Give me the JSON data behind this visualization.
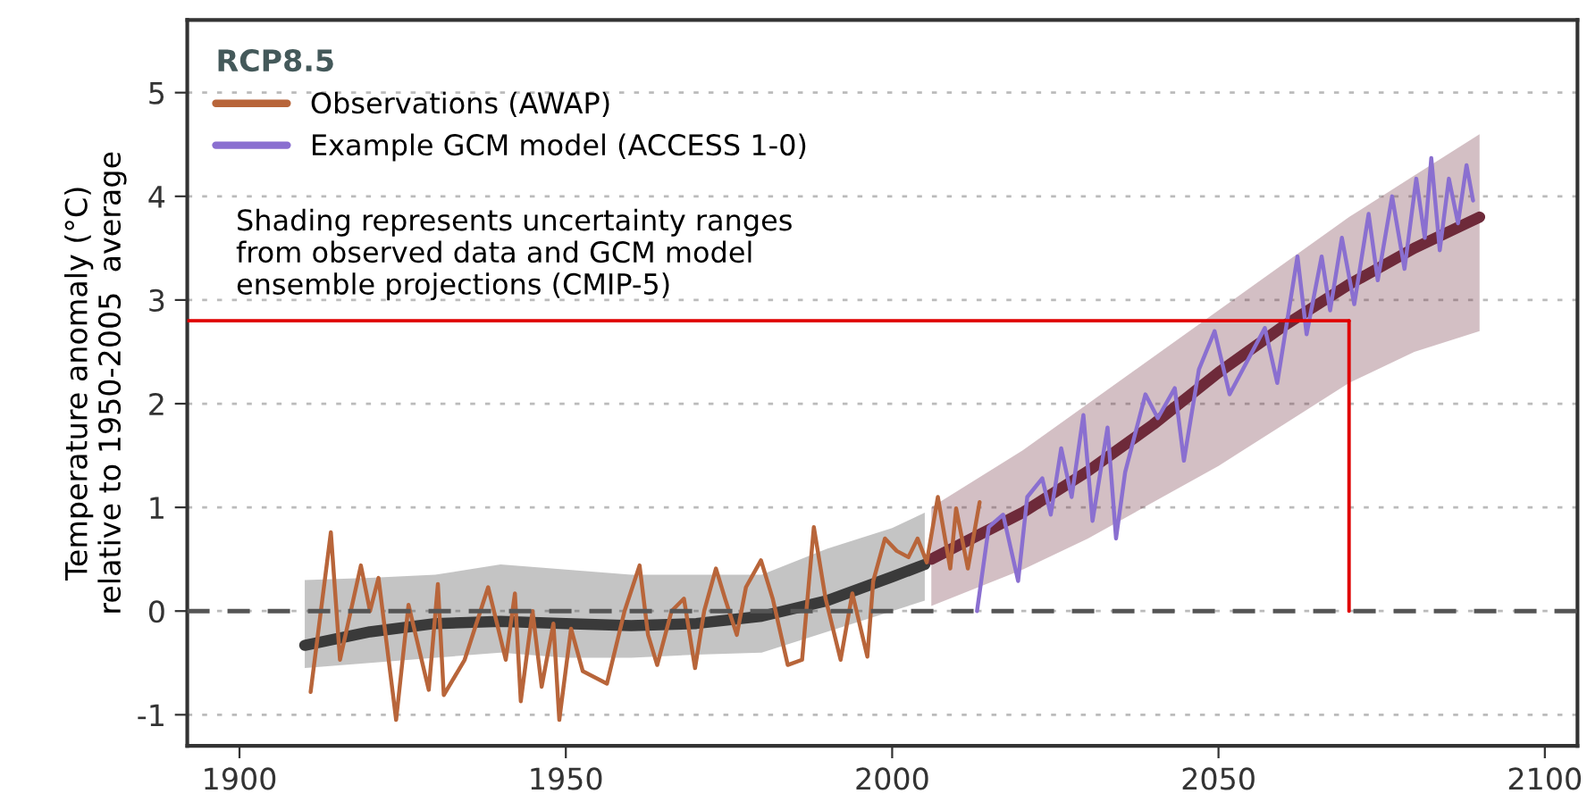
{
  "chart_data": {
    "type": "line",
    "ylabel": "Temperature anomaly (°C)\nrelative to 1950-2005  average",
    "legend_title": "RCP8.5",
    "annotations": [
      "Shading represents uncertainty ranges\nfrom observed data and GCM model\nensemble projections (CMIP-5)"
    ],
    "xlim": [
      1892,
      2105
    ],
    "xticks": [
      1900,
      1950,
      2000,
      2050,
      2100
    ],
    "ylim": [
      -1.3,
      5.7
    ],
    "yticks": [
      -1,
      0,
      1,
      2,
      3,
      4,
      5
    ],
    "grid": "y",
    "legend": "top left",
    "line_style": "solid",
    "marker": "none",
    "series": [
      {
        "color": "#3a3a3a",
        "x": [
          1910,
          1920,
          1930,
          1940,
          1950,
          1960,
          1970,
          1980,
          1990,
          2000,
          2005
        ],
        "values": [
          -0.33,
          -0.2,
          -0.12,
          -0.1,
          -0.12,
          -0.14,
          -0.12,
          -0.05,
          0.1,
          0.33,
          0.45
        ],
        "lower": [
          -0.55,
          -0.5,
          -0.45,
          -0.4,
          -0.45,
          -0.45,
          -0.42,
          -0.4,
          -0.2,
          0.0,
          0.1
        ],
        "upper": [
          0.3,
          0.32,
          0.35,
          0.45,
          0.4,
          0.35,
          0.35,
          0.35,
          0.6,
          0.8,
          0.95
        ]
      },
      {
        "color": "#6e2a3a",
        "x": [
          2006,
          2020,
          2030,
          2040,
          2050,
          2060,
          2070,
          2080,
          2090
        ],
        "values": [
          0.5,
          0.95,
          1.35,
          1.8,
          2.3,
          2.75,
          3.15,
          3.5,
          3.8
        ],
        "lower": [
          0.05,
          0.4,
          0.7,
          1.05,
          1.4,
          1.8,
          2.2,
          2.5,
          2.7
        ],
        "upper": [
          1.0,
          1.55,
          2.0,
          2.45,
          2.9,
          3.35,
          3.8,
          4.2,
          4.6
        ]
      },
      {
        "name": "Observations (AWAP)",
        "color": "#b8653a",
        "x": [
          1910.9,
          1914,
          1915.4,
          1918.6,
          1920,
          1921.3,
          1924,
          1925.9,
          1929,
          1930.4,
          1931.3,
          1934.5,
          1938.1,
          1940.8,
          1942.2,
          1943.1,
          1944.9,
          1946.3,
          1948.1,
          1949,
          1950.8,
          1952.6,
          1956.3,
          1959,
          1961.3,
          1962.6,
          1964,
          1966.2,
          1968.1,
          1969.8,
          1971.2,
          1973,
          1974.4,
          1976.2,
          1977.6,
          1979.9,
          1981.7,
          1984,
          1986.2,
          1988,
          1989.8,
          1992.1,
          1993.9,
          1996.2,
          1997.1,
          1998.9,
          2000.7,
          2002.5,
          2003.9,
          2005.3,
          2007,
          2008.9,
          2009.8,
          2011.6,
          2013.4
        ],
        "values": [
          -0.78,
          0.76,
          -0.47,
          0.44,
          0,
          0.32,
          -1.05,
          0.06,
          -0.76,
          0.26,
          -0.81,
          -0.47,
          0.23,
          -0.47,
          0.17,
          -0.87,
          0,
          -0.73,
          -0.12,
          -1.05,
          -0.17,
          -0.58,
          -0.7,
          0,
          0.44,
          -0.23,
          -0.52,
          0,
          0.12,
          -0.55,
          0,
          0.41,
          0.12,
          -0.23,
          0.23,
          0.49,
          0.12,
          -0.52,
          -0.47,
          0.81,
          0.12,
          -0.47,
          0.17,
          -0.44,
          0.29,
          0.7,
          0.58,
          0.52,
          0.7,
          0.47,
          1.1,
          0.41,
          0.99,
          0.41,
          1.05
        ]
      },
      {
        "name": "Example GCM model (ACCESS 1-0)",
        "color": "#8a6fd0",
        "x": [
          2013,
          2014.8,
          2017,
          2019.3,
          2020.7,
          2023,
          2024.3,
          2025.9,
          2027.5,
          2029.3,
          2030.7,
          2033,
          2034.3,
          2035.7,
          2038.8,
          2040.7,
          2043.3,
          2044.7,
          2047,
          2049.4,
          2051.7,
          2057.1,
          2059,
          2062.1,
          2063.5,
          2065.8,
          2067.1,
          2068.9,
          2070.8,
          2073,
          2074.4,
          2076.6,
          2078.5,
          2080.3,
          2081.6,
          2082.6,
          2083.9,
          2085.3,
          2086.7,
          2088,
          2089
        ],
        "values": [
          0,
          0.81,
          0.93,
          0.29,
          1.1,
          1.28,
          0.93,
          1.57,
          1.1,
          1.89,
          0.87,
          1.77,
          0.7,
          1.34,
          2.09,
          1.86,
          2.15,
          1.45,
          2.33,
          2.7,
          2.09,
          2.73,
          2.2,
          3.42,
          2.67,
          3.42,
          2.9,
          3.6,
          2.96,
          3.83,
          3.19,
          4.0,
          3.3,
          4.17,
          3.6,
          4.37,
          3.48,
          4.17,
          3.74,
          4.3,
          3.96
        ]
      }
    ],
    "ref_lines": [
      {
        "axis": "y",
        "value": 0,
        "color": "#555555",
        "line_style": "dashed"
      },
      {
        "axis": "y",
        "value": 2.8,
        "color": "#e00000",
        "line_style": "solid"
      },
      {
        "axis": "x",
        "value": 2070,
        "color": "#e00000",
        "line_style": "solid"
      }
    ]
  }
}
